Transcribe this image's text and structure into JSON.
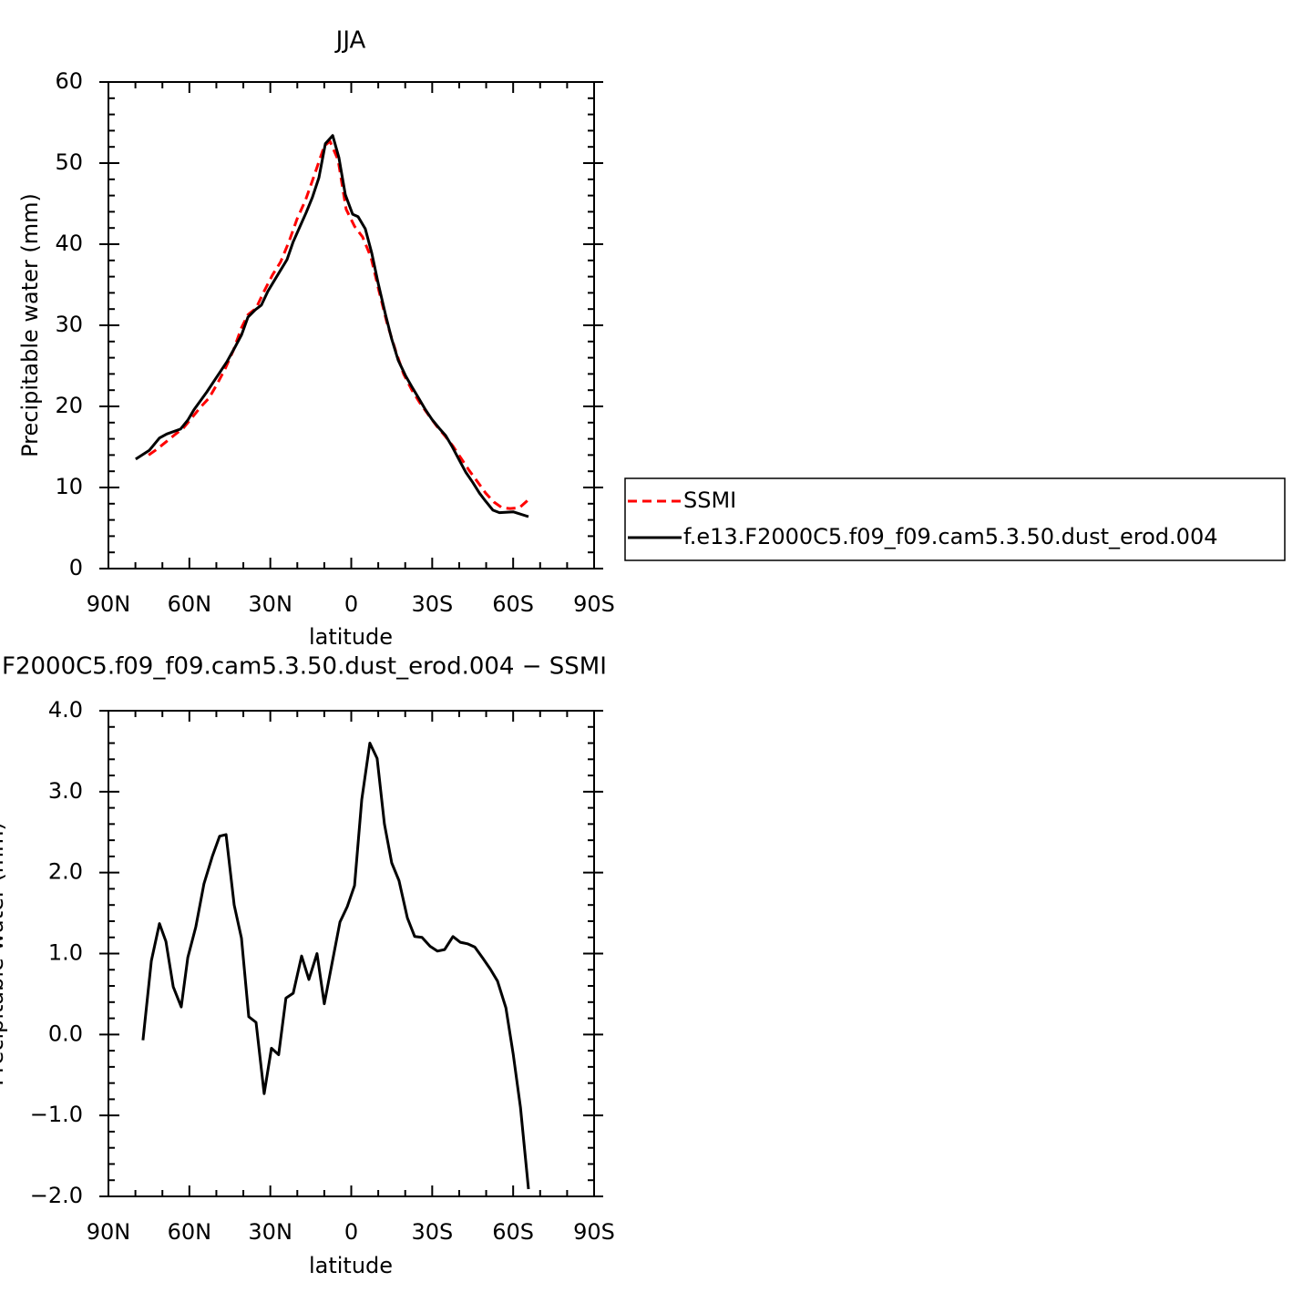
{
  "chart_data": [
    {
      "type": "line",
      "title": "JJA",
      "xlabel": "latitude",
      "ylabel": "Precipitable water (mm)",
      "xlim": [
        90,
        -90
      ],
      "ylim": [
        0,
        60
      ],
      "xticks": [
        {
          "value": 90,
          "label": "90N"
        },
        {
          "value": 60,
          "label": "60N"
        },
        {
          "value": 30,
          "label": "30N"
        },
        0,
        {
          "value": -30,
          "label": "30S"
        },
        {
          "value": -60,
          "label": "60S"
        },
        {
          "value": -90,
          "label": "90S"
        }
      ],
      "yticks": [
        0,
        10,
        20,
        30,
        40,
        50,
        60
      ],
      "legend": "right",
      "series": [
        {
          "name": "SSMI",
          "color": "#ff0000",
          "linestyle": "dashed",
          "x": [
            75.1,
            72.1,
            68.4,
            65.4,
            62.3,
            59.3,
            55.9,
            52.8,
            49.8,
            46.8,
            43.7,
            40.7,
            38.3,
            35.3,
            32.3,
            29.2,
            26.2,
            23.1,
            20.1,
            17.0,
            14.0,
            10.0,
            7.9,
            4.9,
            1.9,
            -1.2,
            -4.2,
            -7.3,
            -10.3,
            -13.3,
            -16.4,
            -19.4,
            -22.5,
            -25.5,
            -28.5,
            -31.6,
            -34.6,
            -37.7,
            -40.7,
            -43.7,
            -46.8,
            -49.8,
            -52.9,
            -55.9,
            -58.9,
            -62.3,
            -65.7
          ],
          "values": [
            14.0,
            14.7,
            15.7,
            16.5,
            17.3,
            18.5,
            19.9,
            21.0,
            22.7,
            24.6,
            26.9,
            29.7,
            31.3,
            32.1,
            34.2,
            36.2,
            37.8,
            40.3,
            43.1,
            45.4,
            48.2,
            52.1,
            52.7,
            50.4,
            44.3,
            42.2,
            40.9,
            38.4,
            34.2,
            30.2,
            26.9,
            24.0,
            22.0,
            20.4,
            19.0,
            17.6,
            16.4,
            15.1,
            13.6,
            12.1,
            10.7,
            9.3,
            8.2,
            7.5,
            7.4,
            7.5,
            8.5
          ]
        },
        {
          "name": "f.e13.F2000C5.f09_f09.cam5.3.50.dust_erod.004",
          "color": "#000000",
          "linestyle": "solid",
          "x": [
            79.9,
            74.8,
            71.1,
            68.4,
            63.3,
            60.6,
            58.3,
            53.5,
            50.5,
            46.1,
            43.1,
            40.7,
            38.3,
            35.6,
            33.3,
            30.9,
            28.2,
            23.8,
            21.5,
            16.7,
            14.4,
            12.0,
            9.6,
            6.9,
            4.6,
            2.2,
            -0.5,
            -2.5,
            -5.2,
            -7.6,
            -9.9,
            -12.7,
            -15.0,
            -17.4,
            -20.1,
            -22.5,
            -25.2,
            -27.5,
            -29.9,
            -32.6,
            -35.0,
            -37.3,
            -40.0,
            -42.4,
            -45.1,
            -47.5,
            -49.8,
            -52.5,
            -54.9,
            -60.0,
            -65.7
          ],
          "values": [
            13.5,
            14.6,
            16.1,
            16.6,
            17.2,
            18.3,
            19.6,
            21.8,
            23.3,
            25.5,
            27.3,
            28.8,
            31.0,
            31.9,
            32.5,
            34.2,
            35.7,
            38.1,
            40.3,
            43.9,
            45.8,
            48.2,
            52.4,
            53.4,
            50.7,
            46.1,
            43.7,
            43.4,
            41.9,
            38.9,
            35.3,
            31.3,
            28.3,
            25.7,
            23.8,
            22.4,
            20.9,
            19.6,
            18.4,
            17.3,
            16.4,
            15.1,
            13.4,
            11.9,
            10.6,
            9.3,
            8.3,
            7.2,
            6.9,
            7.0,
            6.4
          ]
        }
      ]
    },
    {
      "type": "line",
      "title": "F2000C5.f09_f09.cam5.3.50.dust_erod.004 − SSMI",
      "xlabel": "latitude",
      "ylabel": "Precipitable water (mm)",
      "xlim": [
        90,
        -90
      ],
      "ylim": [
        -2,
        4
      ],
      "xticks": [
        {
          "value": 90,
          "label": "90N"
        },
        {
          "value": 60,
          "label": "60N"
        },
        {
          "value": 30,
          "label": "30N"
        },
        0,
        {
          "value": -30,
          "label": "30S"
        },
        {
          "value": -60,
          "label": "60S"
        },
        {
          "value": -90,
          "label": "90S"
        }
      ],
      "yticks": [
        {
          "value": -2,
          "label": "−2.0"
        },
        {
          "value": -1,
          "label": "−1.0"
        },
        {
          "value": 0,
          "label": "0.0"
        },
        {
          "value": 1,
          "label": "1.0"
        },
        {
          "value": 2,
          "label": "2.0"
        },
        {
          "value": 3,
          "label": "3.0"
        },
        {
          "value": 4,
          "label": "4.0"
        }
      ],
      "series": [
        {
          "color": "#000000",
          "linestyle": "solid",
          "x": [
            77.2,
            74.1,
            71.1,
            68.7,
            66.0,
            63.0,
            60.6,
            57.6,
            54.6,
            51.5,
            48.8,
            46.4,
            43.4,
            40.7,
            38.0,
            35.3,
            32.3,
            29.6,
            26.9,
            24.2,
            21.5,
            18.4,
            15.7,
            12.7,
            10.0,
            7.3,
            4.2,
            1.5,
            -1.2,
            -3.9,
            -6.9,
            -9.6,
            -12.3,
            -15.0,
            -17.7,
            -20.8,
            -23.5,
            -26.2,
            -29.2,
            -31.9,
            -34.6,
            -37.7,
            -40.4,
            -43.1,
            -45.8,
            -48.8,
            -51.5,
            -54.2,
            -57.3,
            -60.0,
            -62.7,
            -65.7
          ],
          "values": [
            -0.07,
            0.91,
            1.37,
            1.15,
            0.59,
            0.34,
            0.95,
            1.33,
            1.86,
            2.2,
            2.45,
            2.47,
            1.6,
            1.19,
            0.22,
            0.15,
            -0.73,
            -0.17,
            -0.25,
            0.45,
            0.51,
            0.97,
            0.68,
            1.0,
            0.38,
            0.85,
            1.39,
            1.58,
            1.84,
            2.9,
            3.6,
            3.41,
            2.6,
            2.12,
            1.9,
            1.44,
            1.21,
            1.2,
            1.09,
            1.03,
            1.05,
            1.21,
            1.14,
            1.12,
            1.08,
            0.94,
            0.81,
            0.66,
            0.33,
            -0.24,
            -0.9,
            -1.91
          ]
        }
      ]
    }
  ]
}
